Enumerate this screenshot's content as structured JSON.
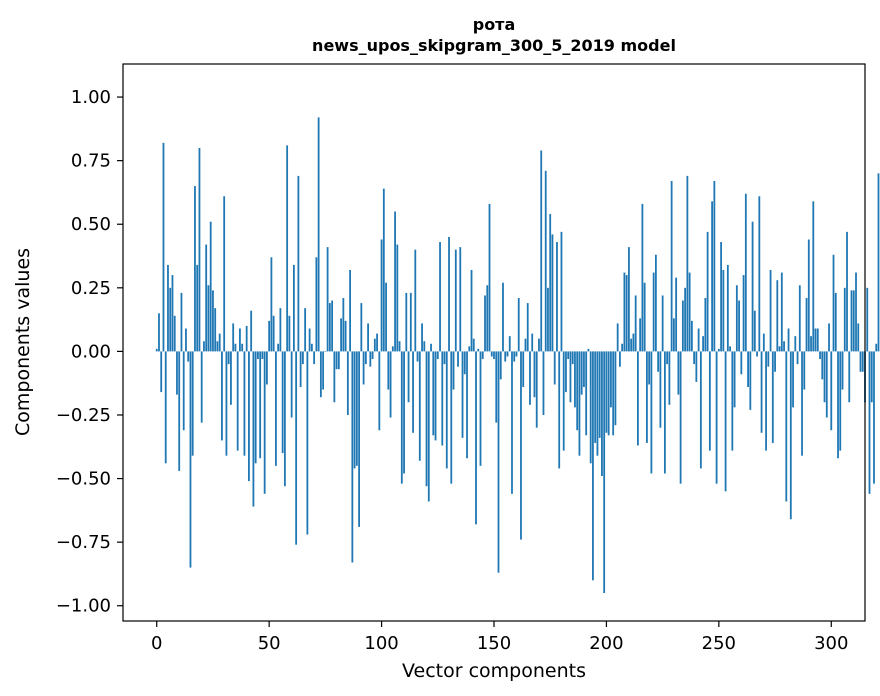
{
  "chart_data": {
    "type": "bar",
    "title": "рота\nnews_upos_skipgram_300_5_2019 model",
    "title_lines": [
      "рота",
      "news_upos_skipgram_300_5_2019 model"
    ],
    "xlabel": "Vector components",
    "ylabel": "Components values",
    "xlim": [
      -15,
      315
    ],
    "ylim": [
      -1.06,
      1.13
    ],
    "xticks": [
      0,
      50,
      100,
      150,
      200,
      250,
      300
    ],
    "xtick_labels": [
      "0",
      "50",
      "100",
      "150",
      "200",
      "250",
      "300"
    ],
    "yticks": [
      -1.0,
      -0.75,
      -0.5,
      -0.25,
      0.0,
      0.25,
      0.5,
      0.75,
      1.0
    ],
    "ytick_labels": [
      "−1.00",
      "−0.75",
      "−0.50",
      "−0.25",
      "0.00",
      "0.25",
      "0.50",
      "0.75",
      "1.00"
    ],
    "grid": false,
    "bar_color": "#1f77b4",
    "values": [
      0.01,
      0.15,
      -0.16,
      0.82,
      -0.44,
      0.34,
      0.25,
      0.3,
      0.14,
      -0.17,
      -0.47,
      0.23,
      -0.31,
      0.09,
      -0.04,
      -0.85,
      -0.41,
      0.65,
      0.34,
      0.8,
      -0.28,
      0.04,
      0.42,
      0.26,
      0.51,
      0.24,
      0.17,
      0.04,
      0.07,
      -0.35,
      0.61,
      -0.41,
      -0.05,
      -0.21,
      0.11,
      0.03,
      -0.39,
      0.09,
      0.03,
      -0.41,
      0.1,
      -0.51,
      0.16,
      -0.61,
      -0.44,
      -0.03,
      -0.42,
      -0.03,
      -0.56,
      -0.13,
      0.12,
      0.37,
      0.14,
      -0.45,
      0.03,
      0.17,
      -0.4,
      -0.53,
      0.81,
      0.14,
      -0.26,
      0.34,
      -0.76,
      0.69,
      -0.14,
      -0.05,
      0.17,
      -0.72,
      0.09,
      0.03,
      -0.05,
      0.37,
      0.92,
      -0.18,
      -0.15,
      0.0,
      0.41,
      0.19,
      0.2,
      -0.2,
      -0.07,
      -0.07,
      0.13,
      0.21,
      0.12,
      -0.25,
      0.32,
      -0.83,
      -0.46,
      -0.45,
      -0.69,
      0.19,
      -0.13,
      -0.05,
      0.11,
      -0.06,
      -0.03,
      0.05,
      0.07,
      -0.31,
      0.44,
      0.64,
      0.27,
      -0.15,
      -0.26,
      0.02,
      0.55,
      0.42,
      0.04,
      -0.52,
      -0.48,
      0.23,
      -0.2,
      0.23,
      -0.32,
      0.4,
      -0.04,
      -0.43,
      0.11,
      0.04,
      -0.53,
      -0.59,
      0.03,
      -0.33,
      -0.35,
      -0.03,
      0.43,
      -0.37,
      -0.05,
      -0.46,
      0.45,
      -0.52,
      -0.15,
      0.4,
      -0.06,
      0.41,
      -0.34,
      -0.09,
      -0.42,
      0.02,
      0.32,
      0.05,
      -0.68,
      0.01,
      -0.45,
      -0.03,
      0.22,
      0.26,
      0.58,
      -0.02,
      -0.03,
      -0.28,
      -0.87,
      -0.11,
      0.27,
      -0.04,
      -0.02,
      0.06,
      -0.56,
      -0.04,
      -0.02,
      0.21,
      -0.74,
      -0.14,
      0.05,
      0.19,
      -0.21,
      0.07,
      -0.18,
      -0.3,
      0.05,
      0.79,
      -0.25,
      0.71,
      0.25,
      0.54,
      0.46,
      -0.13,
      0.43,
      -0.46,
      0.47,
      -0.39,
      -0.16,
      -0.03,
      -0.2,
      -0.05,
      -0.22,
      -0.31,
      -0.41,
      -0.17,
      -0.14,
      -0.33,
      0.01,
      -0.44,
      -0.9,
      -0.36,
      -0.41,
      -0.34,
      -0.49,
      -0.95,
      -0.32,
      -0.33,
      -0.22,
      -0.33,
      -0.29,
      0.11,
      -0.06,
      0.03,
      0.31,
      0.3,
      0.41,
      0.05,
      0.07,
      0.22,
      -0.37,
      0.13,
      0.58,
      0.27,
      -0.36,
      -0.13,
      -0.48,
      0.31,
      0.38,
      -0.08,
      -0.3,
      0.22,
      -0.48,
      -0.05,
      -0.21,
      0.67,
      0.13,
      0.29,
      -0.17,
      -0.52,
      0.2,
      0.25,
      0.69,
      0.31,
      0.12,
      -0.05,
      -0.12,
      0.09,
      -0.46,
      0.06,
      0.21,
      0.47,
      -0.39,
      0.59,
      0.67,
      -0.52,
      0.01,
      0.43,
      0.32,
      -0.55,
      0.34,
      0.02,
      -0.39,
      -0.22,
      0.26,
      0.2,
      -0.09,
      0.3,
      0.62,
      -0.14,
      -0.23,
      0.51,
      0.16,
      -0.02,
      0.61,
      -0.32,
      0.07,
      -0.39,
      -0.06,
      0.32,
      -0.36,
      -0.08,
      0.28,
      0.02,
      0.31,
      0.04,
      -0.59,
      0.09,
      -0.66,
      -0.22,
      0.06,
      -0.05,
      0.26,
      -0.41,
      -0.15,
      0.21,
      0.44,
      0.06,
      0.59,
      0.09,
      0.09,
      -0.03,
      -0.11,
      -0.2,
      -0.26,
      0.11,
      -0.31,
      0.38,
      0.23,
      -0.42,
      -0.39,
      -0.15,
      0.25,
      0.47,
      -0.2,
      0.24,
      0.24,
      0.31,
      0.11,
      -0.08,
      -0.08,
      -0.2,
      0.25,
      -0.56,
      -0.2,
      -0.52,
      0.03,
      0.7
    ]
  }
}
